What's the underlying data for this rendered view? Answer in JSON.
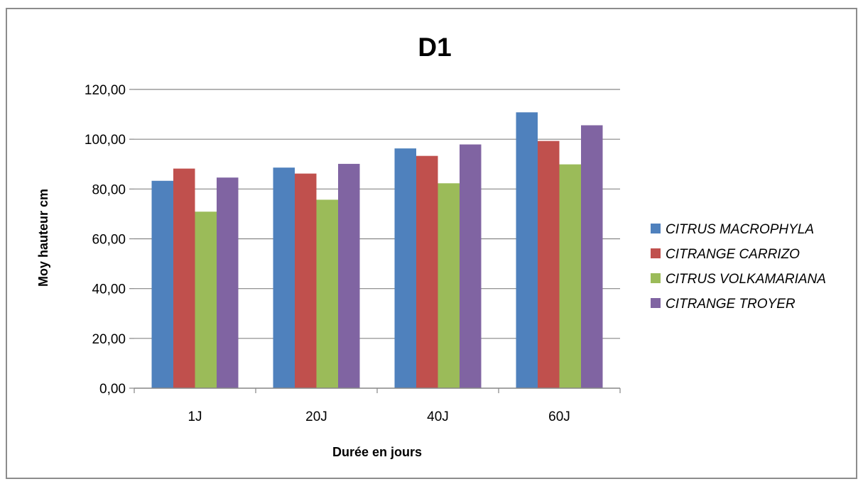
{
  "chart_data": {
    "type": "bar",
    "title": "D1",
    "xlabel": "Durée en jours",
    "ylabel": "Moy hauteur cm",
    "categories": [
      "1J",
      "20J",
      "40J",
      "60J"
    ],
    "ylim": [
      0,
      120
    ],
    "yticks": [
      0,
      20,
      40,
      60,
      80,
      100,
      120
    ],
    "ytick_labels": [
      "0,00",
      "20,00",
      "40,00",
      "60,00",
      "80,00",
      "100,00",
      "120,00"
    ],
    "grid": true,
    "legend_position": "right",
    "series": [
      {
        "name": "CITRUS MACROPHYLA",
        "color": "#4f81bd",
        "values": [
          83.3,
          88.6,
          96.3,
          110.8
        ]
      },
      {
        "name": "CITRANGE CARRIZO",
        "color": "#c0504d",
        "values": [
          88.2,
          86.2,
          93.3,
          99.3
        ]
      },
      {
        "name": "CITRUS VOLKAMARIANA",
        "color": "#9bbb59",
        "values": [
          70.9,
          75.7,
          82.3,
          89.9
        ]
      },
      {
        "name": "CITRANGE TROYER",
        "color": "#8064a2",
        "values": [
          84.6,
          90.1,
          97.9,
          105.6
        ]
      }
    ]
  }
}
